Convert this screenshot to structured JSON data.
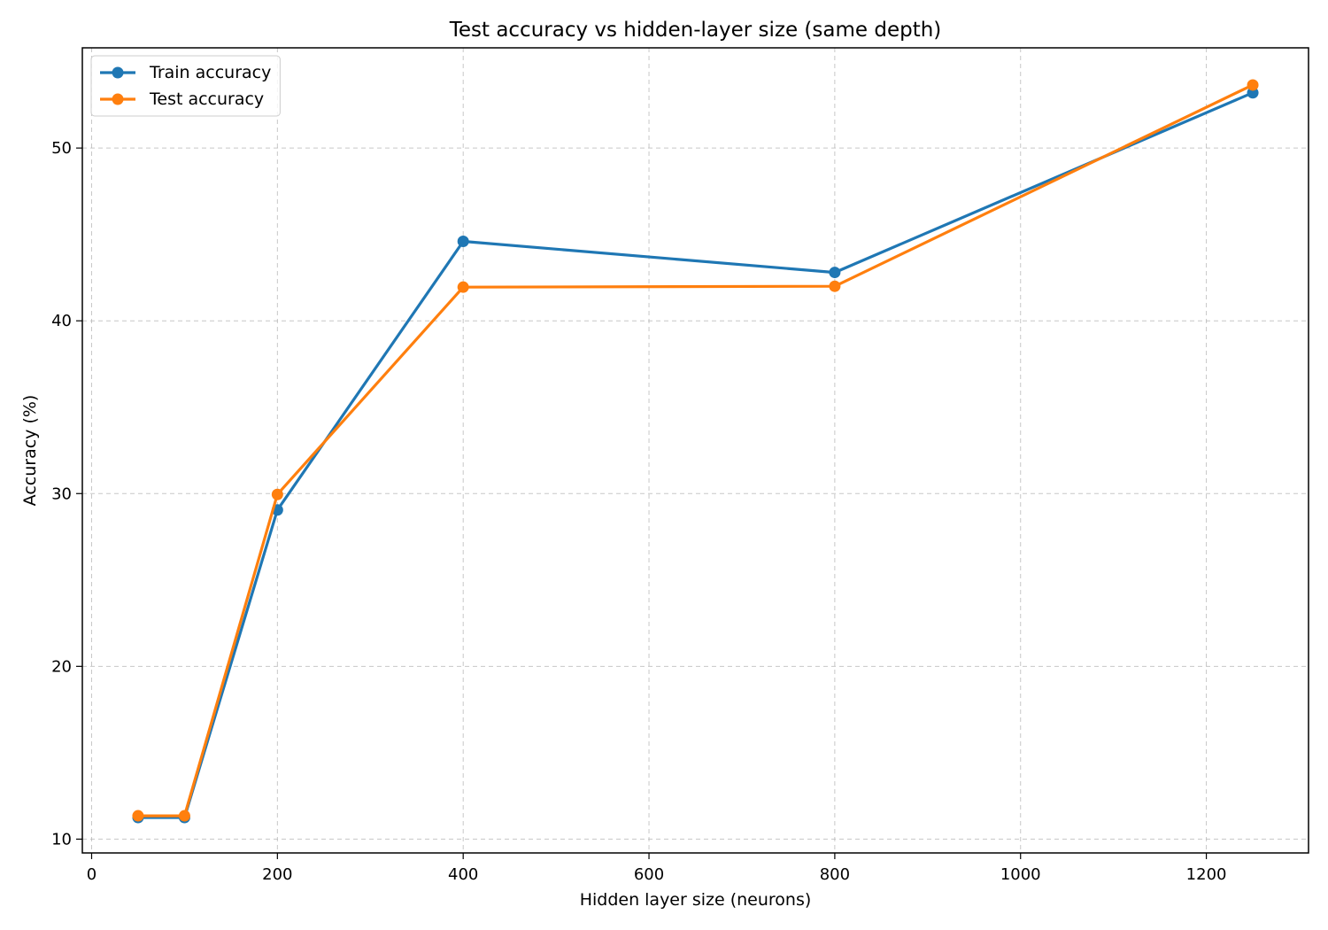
{
  "chart_data": {
    "type": "line",
    "title": "Test accuracy vs hidden-layer size (same depth)",
    "xlabel": "Hidden layer size (neurons)",
    "ylabel": "Accuracy (%)",
    "x": [
      50,
      100,
      200,
      400,
      800,
      1250
    ],
    "xlim": [
      -10,
      1310
    ],
    "ylim": [
      9.2,
      55.8
    ],
    "xticks": [
      0,
      200,
      400,
      600,
      800,
      1000,
      1200
    ],
    "yticks": [
      10,
      20,
      30,
      40,
      50
    ],
    "grid": true,
    "legend_position": "top-left",
    "series": [
      {
        "name": "Train accuracy",
        "color": "#1f77b4",
        "values": [
          11.25,
          11.25,
          29.05,
          44.6,
          42.8,
          53.2
        ]
      },
      {
        "name": "Test accuracy",
        "color": "#ff7f0e",
        "values": [
          11.35,
          11.35,
          29.95,
          41.95,
          42.0,
          53.65
        ]
      }
    ]
  }
}
